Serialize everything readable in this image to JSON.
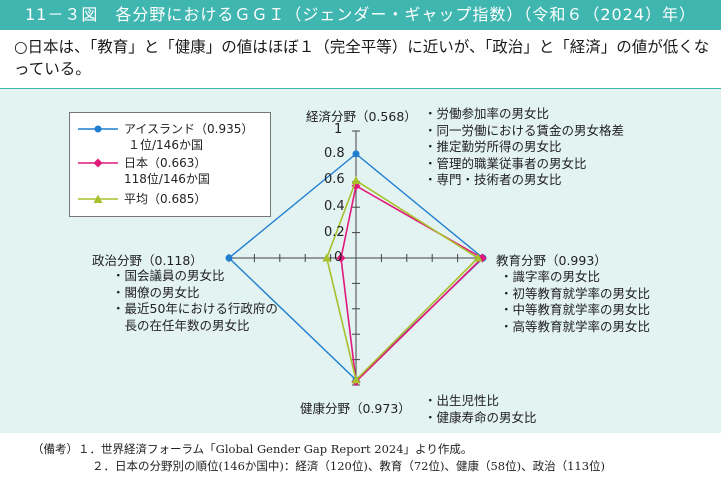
{
  "title": "11－３図　各分野におけるＧＧＩ（ジェンダー・ギャップ指数）（令和６（2024）年）",
  "summary": "○日本は、「教育」と「健康」の値はほぼ１（完全平等）に近いが、「政治」と「経済」の値が低くなっている。",
  "colors": {
    "header": "#3fb6b0",
    "iceland": "#1f7ed0",
    "japan": "#e0197d",
    "average": "#a8c02c",
    "chart_bg": "#e3f3f2"
  },
  "legend": [
    {
      "label": "アイスランド（0.935）",
      "sub": "１位/146か国",
      "marker": "circle"
    },
    {
      "label": "日本（0.663）",
      "sub": "118位/146か国",
      "marker": "diamond"
    },
    {
      "label": "平均（0.685）",
      "sub": "",
      "marker": "triangle"
    }
  ],
  "axes": {
    "economy": {
      "label": "経済分野（0.568）",
      "items": [
        "・労働参加率の男女比",
        "・同一労働における賃金の男女格差",
        "・推定勤労所得の男女比",
        "・管理的職業従事者の男女比",
        "・専門・技術者の男女比"
      ]
    },
    "education": {
      "label": "教育分野（0.993）",
      "items": [
        "・識字率の男女比",
        "・初等教育就学率の男女比",
        "・中等教育就学率の男女比",
        "・高等教育就学率の男女比"
      ]
    },
    "health": {
      "label": "健康分野（0.973）",
      "items": [
        "・出生児性比",
        "・健康寿命の男女比"
      ]
    },
    "politics": {
      "label": "政治分野（0.118）",
      "items": [
        "・国会議員の男女比",
        "・閣僚の男女比",
        "・最近50年における行政府の",
        "　長の在任年数の男女比"
      ]
    }
  },
  "ticks": [
    "1",
    "0.8",
    "0.6",
    "0.4",
    "0.2",
    "0"
  ],
  "notes": [
    "（備考）１．世界経済フォーラム「Global Gender Gap Report 2024」より作成。",
    "２．日本の分野別の順位(146か国中)：経済（120位)、教育（72位)、健康（58位)、政治（113位)"
  ],
  "chart_data": {
    "type": "radar",
    "axes": [
      "経済分野",
      "教育分野",
      "健康分野",
      "政治分野"
    ],
    "range": [
      0,
      1
    ],
    "ticks": [
      0,
      0.2,
      0.4,
      0.6,
      0.8,
      1
    ],
    "series": [
      {
        "name": "アイスランド（0.935）",
        "values": [
          0.82,
          1.0,
          0.96,
          1.0
        ]
      },
      {
        "name": "日本（0.663）",
        "values": [
          0.568,
          0.993,
          0.973,
          0.118
        ]
      },
      {
        "name": "平均（0.685）",
        "values": [
          0.61,
          0.96,
          0.96,
          0.23
        ]
      }
    ]
  }
}
